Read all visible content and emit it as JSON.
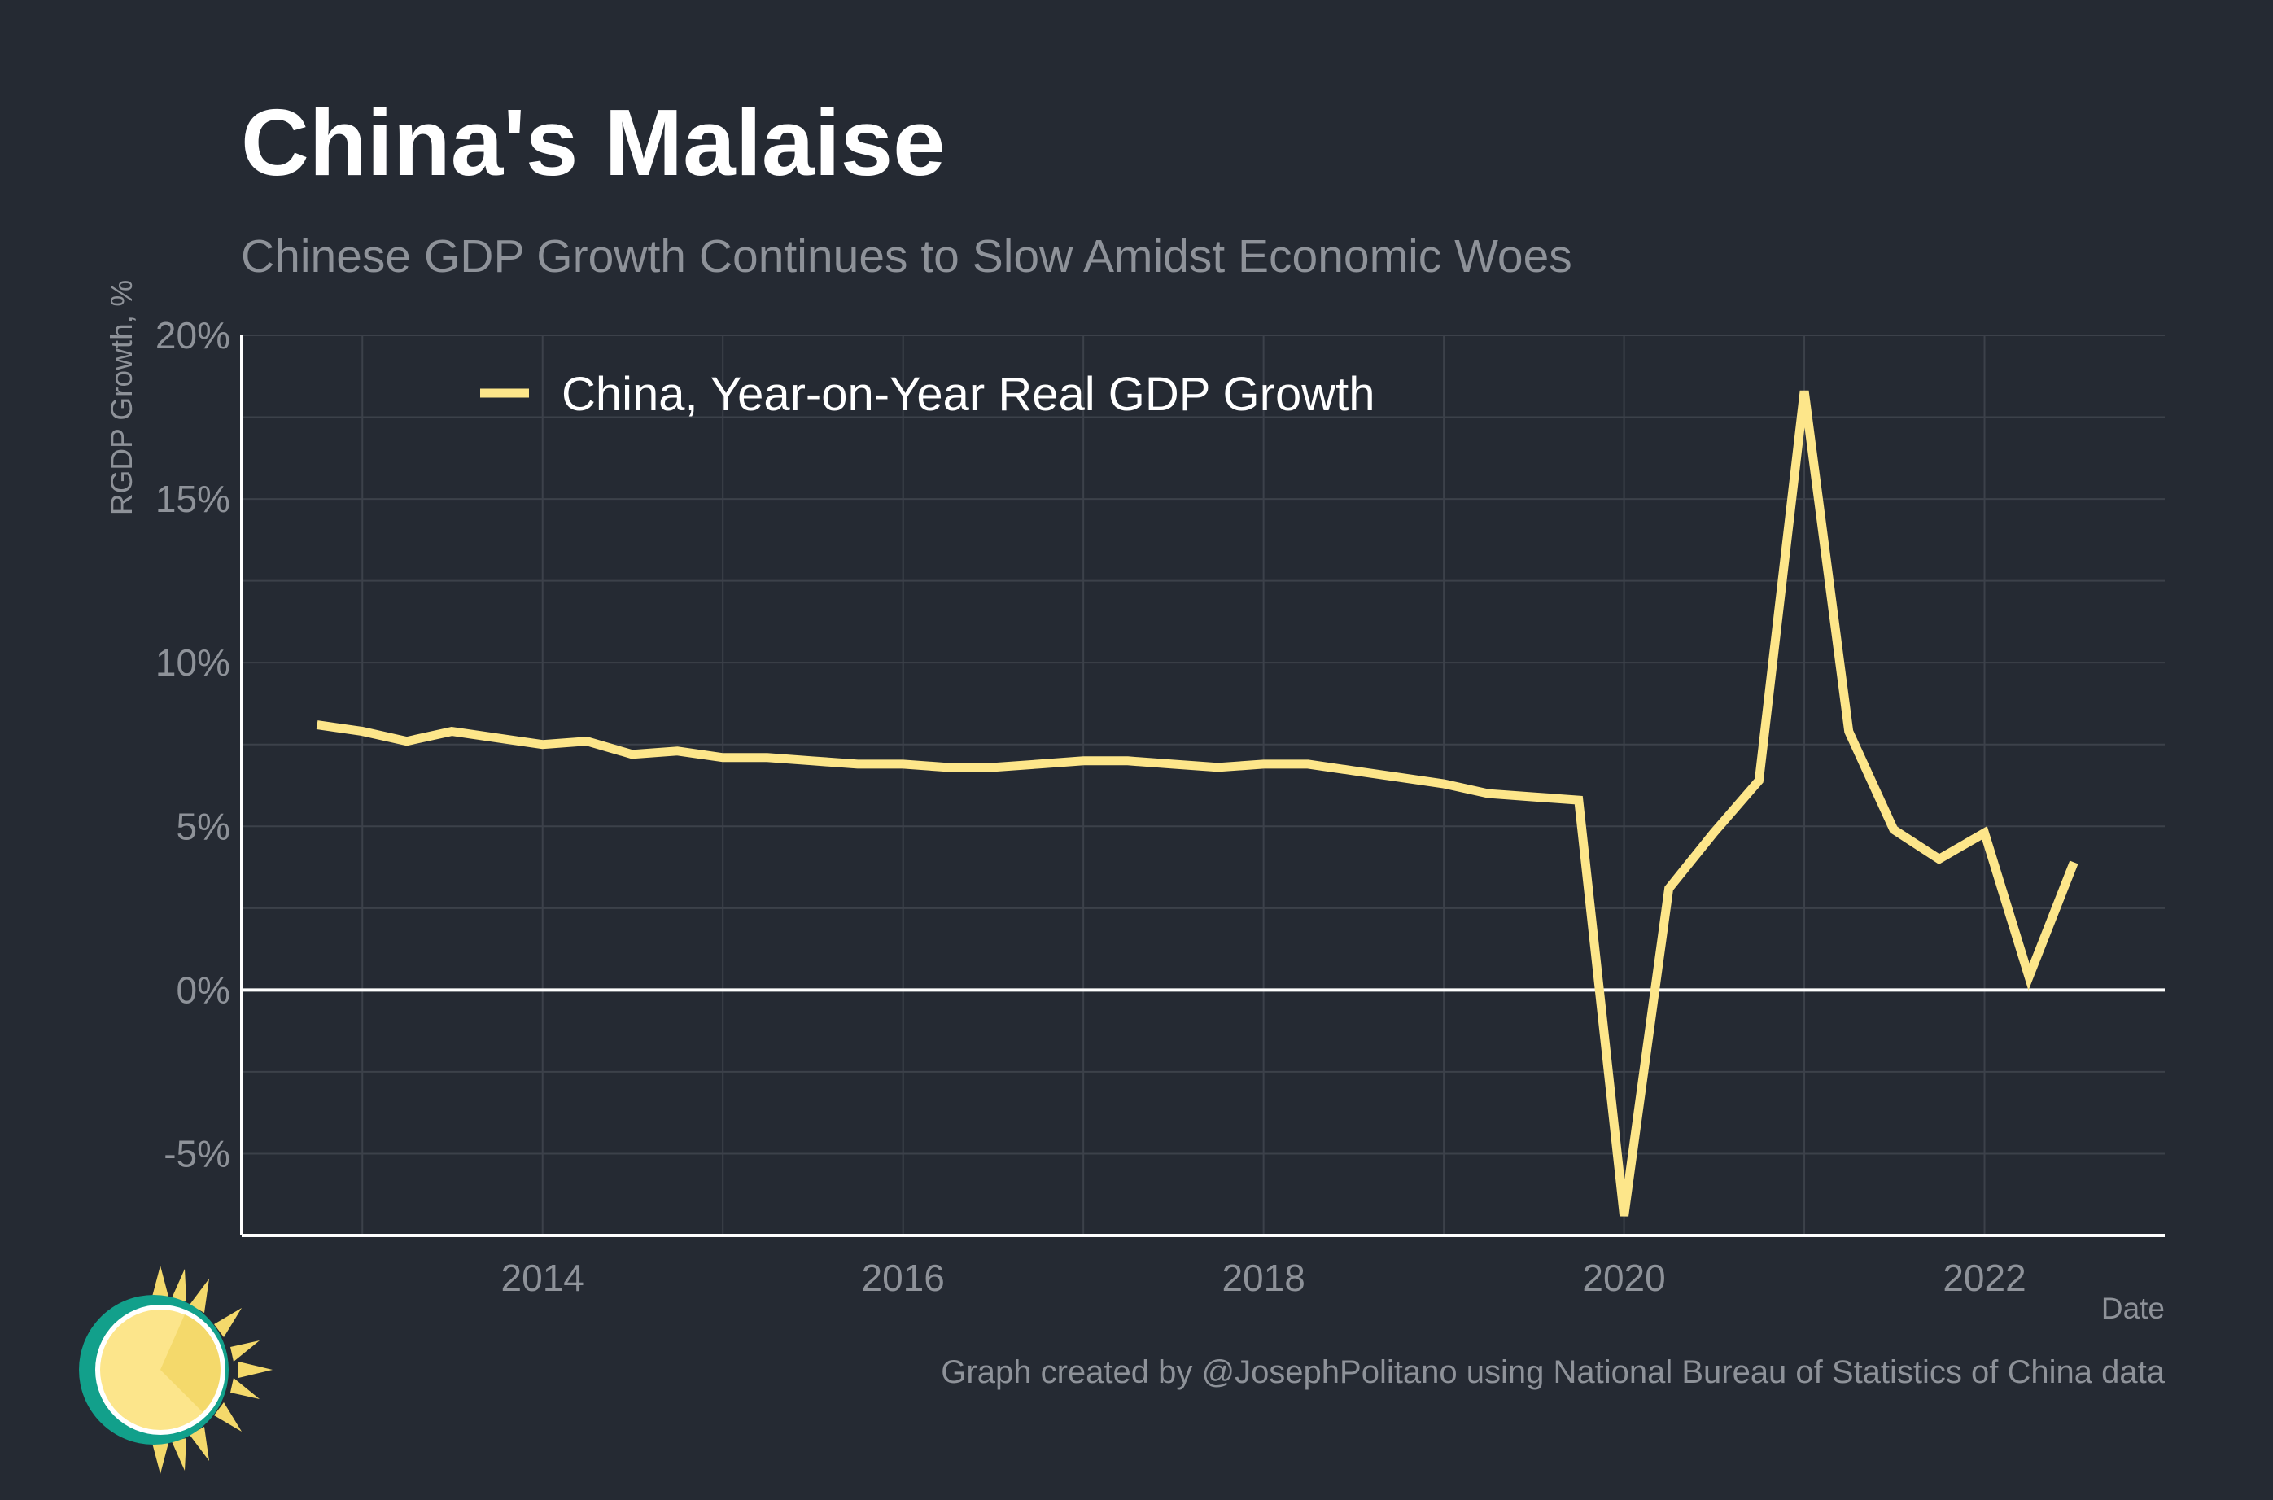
{
  "title": "China's Malaise",
  "subtitle": "Chinese GDP Growth Continues to Slow Amidst Economic Woes",
  "caption": "Graph created by @JosephPolitano using National Bureau of Statistics of China data",
  "colors": {
    "background": "#252a33",
    "line": "#fde68a",
    "grid": "#3c414a",
    "text_muted": "#8e9299",
    "axis": "#ffffff"
  },
  "chart_data": {
    "type": "line",
    "xlabel": "Date",
    "ylabel": "RGDP Growth, %",
    "x_ticks": [
      2014,
      2016,
      2018,
      2020,
      2022
    ],
    "x_tick_labels": [
      "2014",
      "2016",
      "2018",
      "2020",
      "2022"
    ],
    "y_ticks": [
      -5,
      0,
      5,
      10,
      15,
      20
    ],
    "y_tick_labels": [
      "-5%",
      "0%",
      "5%",
      "10%",
      "15%",
      "20%"
    ],
    "xlim": [
      "2012-05-01",
      "2023-01-01"
    ],
    "ylim": [
      -7.5,
      20
    ],
    "grid": true,
    "zero_line": true,
    "legend_position": "top-left",
    "series": [
      {
        "name": "China, Year-on-Year Real GDP Growth",
        "color": "#fde68a",
        "points": [
          [
            "2012-10-01",
            8.1
          ],
          [
            "2013-01-01",
            7.9
          ],
          [
            "2013-04-01",
            7.6
          ],
          [
            "2013-07-01",
            7.9
          ],
          [
            "2013-10-01",
            7.7
          ],
          [
            "2014-01-01",
            7.5
          ],
          [
            "2014-04-01",
            7.6
          ],
          [
            "2014-07-01",
            7.2
          ],
          [
            "2014-10-01",
            7.3
          ],
          [
            "2015-01-01",
            7.1
          ],
          [
            "2015-04-01",
            7.1
          ],
          [
            "2015-07-01",
            7.0
          ],
          [
            "2015-10-01",
            6.9
          ],
          [
            "2016-01-01",
            6.9
          ],
          [
            "2016-04-01",
            6.8
          ],
          [
            "2016-07-01",
            6.8
          ],
          [
            "2016-10-01",
            6.9
          ],
          [
            "2017-01-01",
            7.0
          ],
          [
            "2017-04-01",
            7.0
          ],
          [
            "2017-07-01",
            6.9
          ],
          [
            "2017-10-01",
            6.8
          ],
          [
            "2018-01-01",
            6.9
          ],
          [
            "2018-04-01",
            6.9
          ],
          [
            "2018-07-01",
            6.7
          ],
          [
            "2018-10-01",
            6.5
          ],
          [
            "2019-01-01",
            6.3
          ],
          [
            "2019-04-01",
            6.0
          ],
          [
            "2019-07-01",
            5.9
          ],
          [
            "2019-10-01",
            5.8
          ],
          [
            "2020-01-01",
            -6.9
          ],
          [
            "2020-04-01",
            3.1
          ],
          [
            "2020-07-01",
            4.8
          ],
          [
            "2020-10-01",
            6.4
          ],
          [
            "2021-01-01",
            18.3
          ],
          [
            "2021-04-01",
            7.9
          ],
          [
            "2021-07-01",
            4.9
          ],
          [
            "2021-10-01",
            4.0
          ],
          [
            "2022-01-01",
            4.8
          ],
          [
            "2022-04-01",
            0.4
          ],
          [
            "2022-07-01",
            3.9
          ]
        ]
      }
    ]
  }
}
